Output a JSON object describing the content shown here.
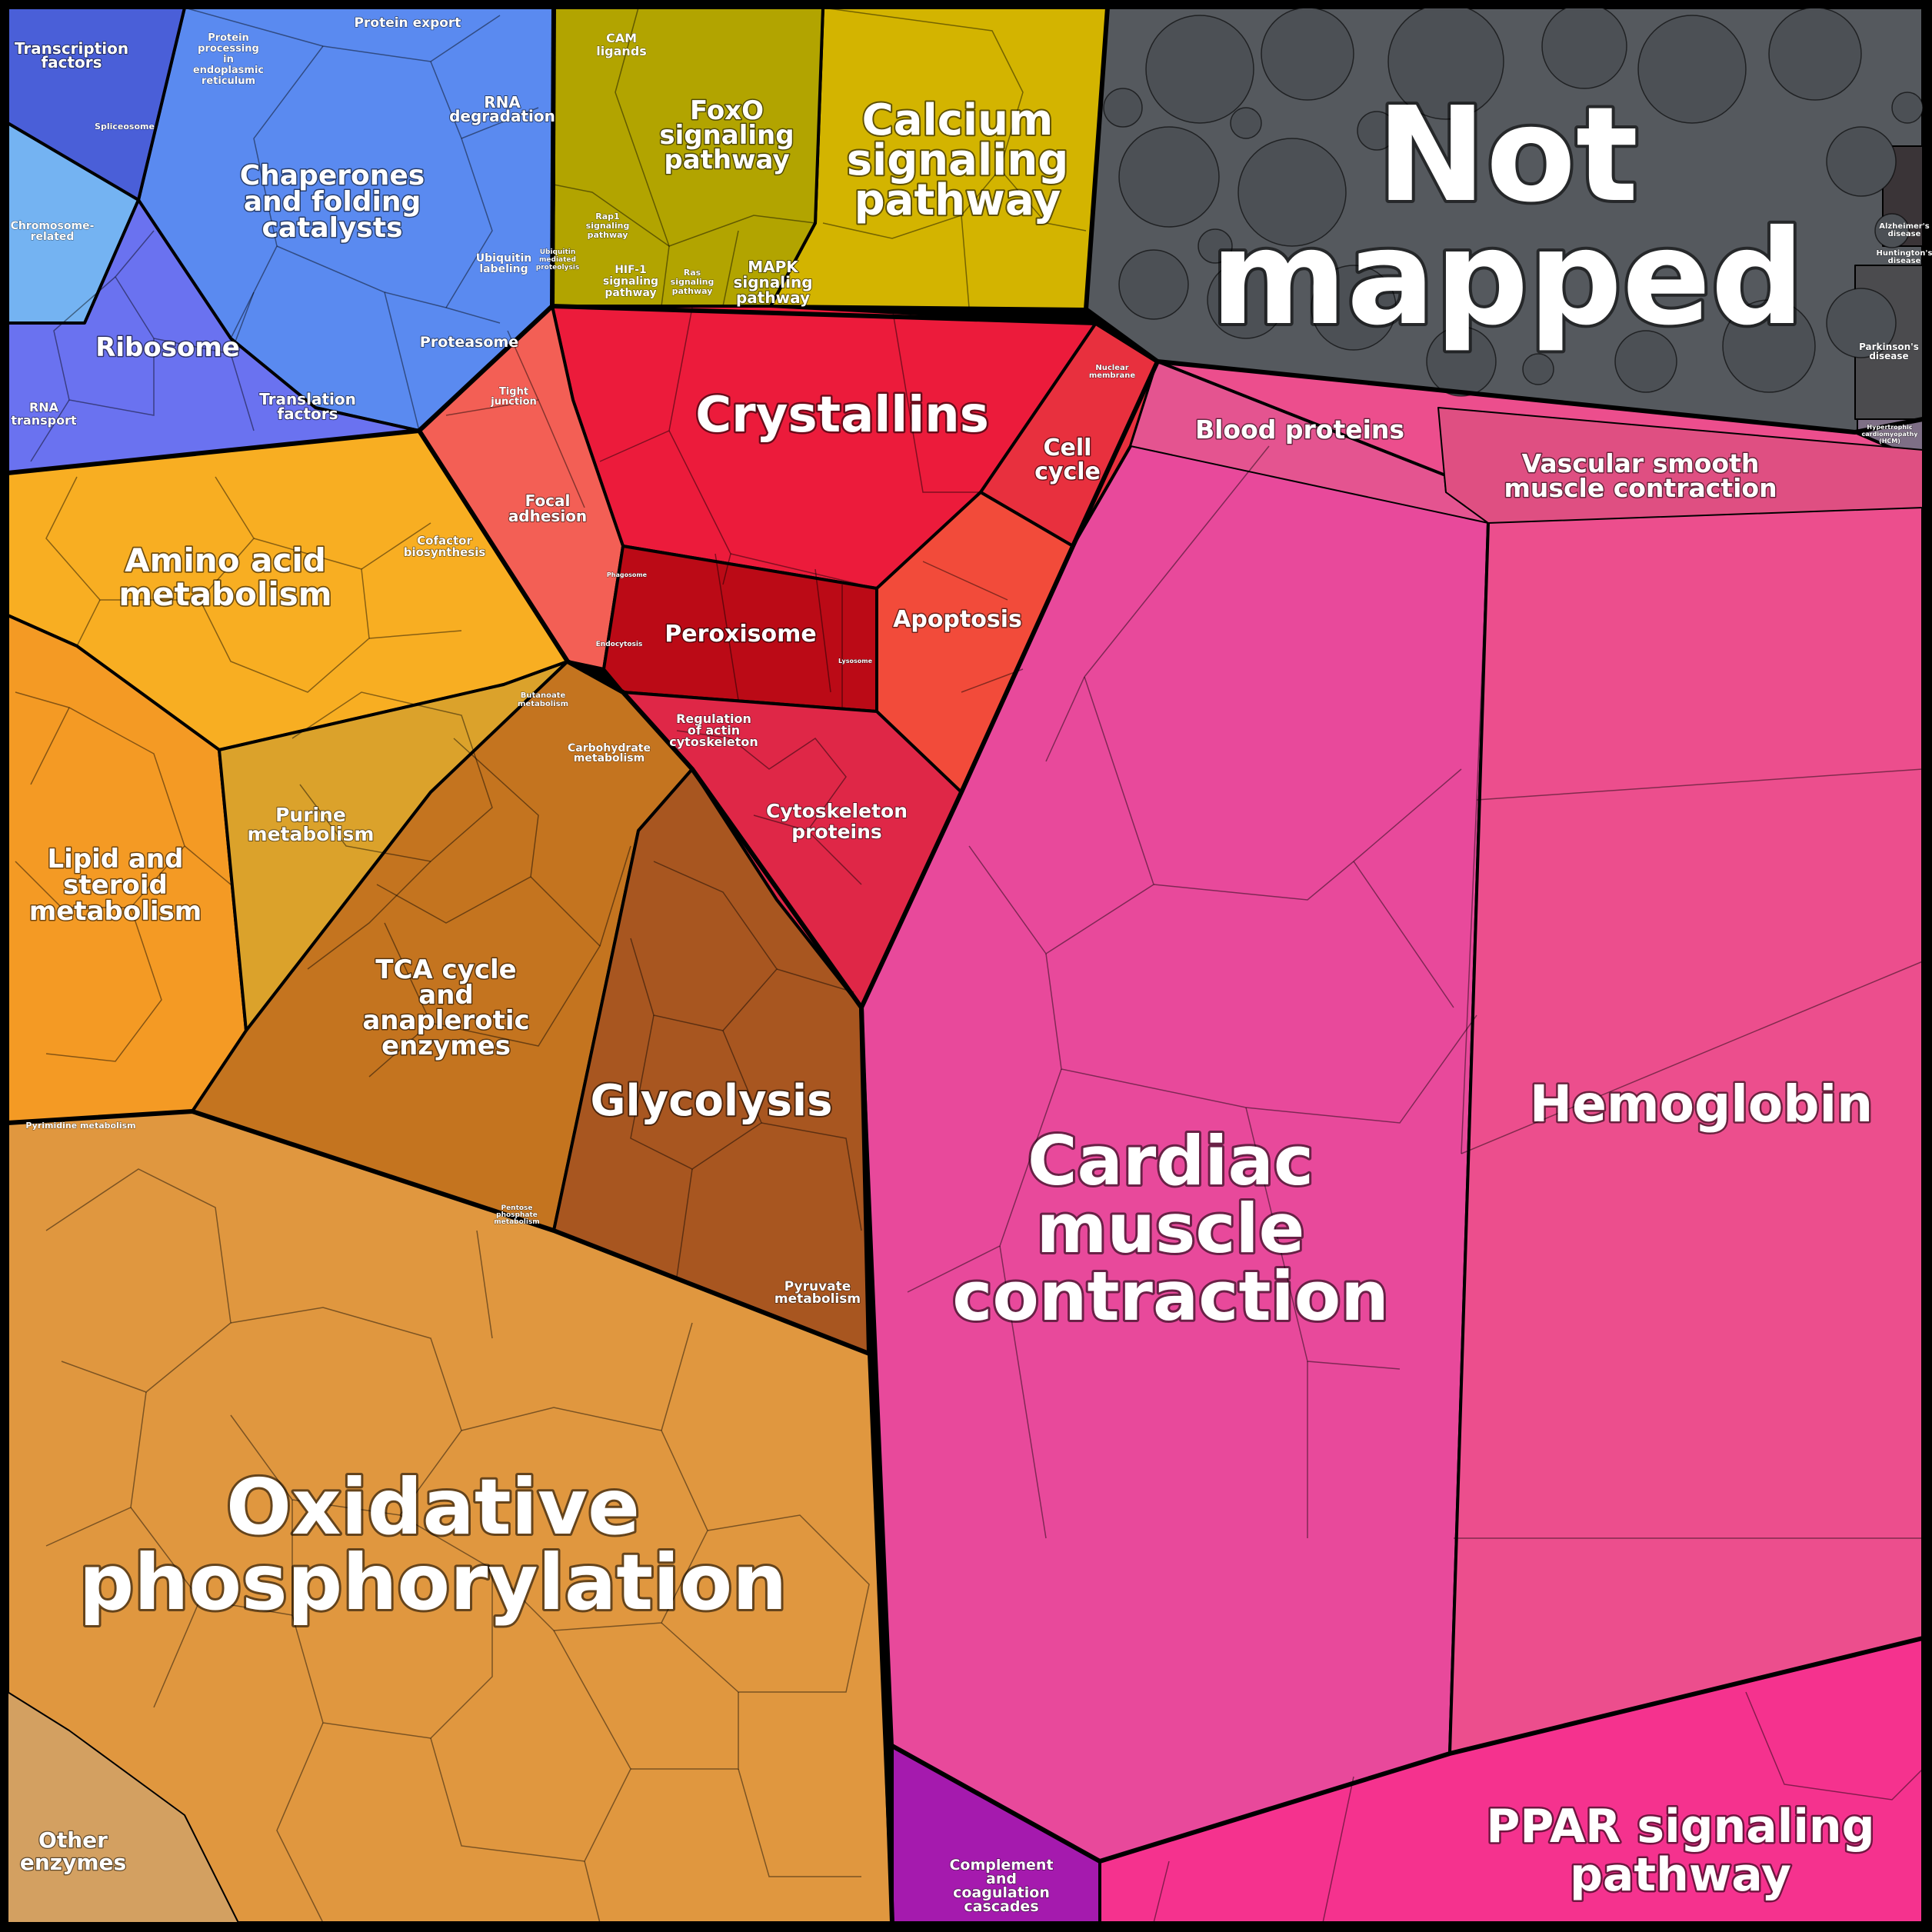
{
  "diagram": {
    "categories": [
      {
        "id": "not-mapped",
        "label": "Not mapped",
        "color": "#55595e"
      },
      {
        "id": "crystallins",
        "label": "Crystallins",
        "color": "#ec1a3b"
      },
      {
        "id": "calcium",
        "label": "Calcium signaling pathway",
        "color": "#d4b400"
      },
      {
        "id": "foxo",
        "label": "FoxO signaling pathway",
        "color": "#b3a500"
      },
      {
        "id": "chaperones",
        "label": "Chaperones and folding catalysts",
        "color": "#5a8df0"
      },
      {
        "id": "ribosome",
        "label": "Ribosome",
        "color": "#6470f0"
      },
      {
        "id": "amino",
        "label": "Amino acid metabolism",
        "color": "#f8ae22"
      },
      {
        "id": "lipid",
        "label": "Lipid and steroid metabolism",
        "color": "#f49a22"
      },
      {
        "id": "purine",
        "label": "Purine metabolism",
        "color": "#dca22a"
      },
      {
        "id": "tca",
        "label": "TCA cycle and anaplerotic enzymes",
        "color": "#c4741e"
      },
      {
        "id": "glycolysis",
        "label": "Glycolysis",
        "color": "#a9571f"
      },
      {
        "id": "oxphos",
        "label": "Oxidative phosphorylation",
        "color": "#e0973f"
      },
      {
        "id": "peroxisome",
        "label": "Peroxisome",
        "color": "#bb0a16"
      },
      {
        "id": "apoptosis",
        "label": "Apoptosis",
        "color": "#f34a3a"
      },
      {
        "id": "cardiac",
        "label": "Cardiac muscle contraction",
        "color": "#e84a95"
      },
      {
        "id": "hemoglobin",
        "label": "Hemoglobin",
        "color": "#ec4c8f"
      },
      {
        "id": "ppar",
        "label": "PPAR signaling pathway",
        "color": "#f5328f"
      }
    ],
    "labels": {
      "not_mapped_1": "Not",
      "not_mapped_2": "mapped",
      "crystallins": "Crystallins",
      "calcium_1": "Calcium",
      "calcium_2": "signaling",
      "calcium_3": "pathway",
      "foxo_1": "FoxO",
      "foxo_2": "signaling",
      "foxo_3": "pathway",
      "cam_1": "CAM",
      "cam_2": "ligands",
      "hif_1": "HIF-1",
      "hif_2": "signaling",
      "hif_3": "pathway",
      "ras_1": "Ras",
      "ras_2": "signaling",
      "ras_3": "pathway",
      "rap1_1": "Rap1",
      "rap1_2": "signaling",
      "rap1_3": "pathway",
      "mapk_1": "MAPK",
      "mapk_2": "signaling",
      "mapk_3": "pathway",
      "transcription_1": "Transcription",
      "transcription_2": "factors",
      "protein_proc_1": "Protein",
      "protein_proc_2": "processing",
      "protein_proc_3": "in",
      "protein_proc_4": "endoplasmic",
      "protein_proc_5": "reticulum",
      "protein_export": "Protein export",
      "rna_deg_1": "RNA",
      "rna_deg_2": "degradation",
      "spliceosome": "Spliceosome",
      "chaperones_1": "Chaperones",
      "chaperones_2": "and folding",
      "chaperones_3": "catalysts",
      "chromosome_1": "Chromosome-",
      "chromosome_2": "related",
      "ubiquitin_1": "Ubiquitin",
      "ubiquitin_2": "labeling",
      "ubiq_release_1": "Ubiquitin",
      "ubiq_release_2": "mediated",
      "ubiq_release_3": "proteolysis",
      "proteasome": "Proteasome",
      "ribosome": "Ribosome",
      "translation_1": "Translation",
      "translation_2": "factors",
      "rna_transport_1": "RNA",
      "rna_transport_2": "transport",
      "tight_1": "Tight",
      "tight_2": "junction",
      "nuclear_1": "Nuclear",
      "nuclear_2": "membrane",
      "cell_cycle_1": "Cell",
      "cell_cycle_2": "cycle",
      "blood": "Blood proteins",
      "vascular_1": "Vascular smooth",
      "vascular_2": "muscle contraction",
      "focal_1": "Focal",
      "focal_2": "adhesion",
      "amino_1": "Amino acid",
      "amino_2": "metabolism",
      "cofactor_1": "Cofactor",
      "cofactor_2": "biosynthesis",
      "peroxisome": "Peroxisome",
      "apoptosis": "Apoptosis",
      "endocytosis": "Endocytosis",
      "phagosome": "Phagosome",
      "lysosome": "Lysosome",
      "butanoate_1": "Butanoate",
      "butanoate_2": "metabolism",
      "carbohydrate_1": "Carbohydrate",
      "carbohydrate_2": "metabolism",
      "regulation_1": "Regulation",
      "regulation_2": "of actin",
      "regulation_3": "cytoskeleton",
      "cytoskeleton_1": "Cytoskeleton",
      "cytoskeleton_2": "proteins",
      "purine_1": "Purine",
      "purine_2": "metabolism",
      "lipid_1": "Lipid and",
      "lipid_2": "steroid",
      "lipid_3": "metabolism",
      "tca_1": "TCA cycle",
      "tca_2": "and",
      "tca_3": "anaplerotic",
      "tca_4": "enzymes",
      "glycolysis": "Glycolysis",
      "pyrimidine": "Pyrimidine metabolism",
      "pentose_1": "Pentose",
      "pentose_2": "phosphate",
      "pentose_3": "metabolism",
      "pyruvate_1": "Pyruvate",
      "pyruvate_2": "metabolism",
      "oxphos_1": "Oxidative",
      "oxphos_2": "phosphorylation",
      "other_1": "Other",
      "other_2": "enzymes",
      "cardiac_1": "Cardiac",
      "cardiac_2": "muscle",
      "cardiac_3": "contraction",
      "hemoglobin": "Hemoglobin",
      "ppar_1": "PPAR signaling",
      "ppar_2": "pathway",
      "complement_1": "Complement",
      "complement_2": "and",
      "complement_3": "coagulation",
      "complement_4": "cascades",
      "alzheimers_1": "Alzheimer's",
      "alzheimers_2": "disease",
      "huntingtons_1": "Huntington's",
      "huntingtons_2": "disease",
      "parkinsons_1": "Parkinson's",
      "parkinsons_2": "disease",
      "hcm_1": "Hypertrophic",
      "hcm_2": "cardiomyopathy",
      "hcm_3": "(HCM)"
    }
  }
}
